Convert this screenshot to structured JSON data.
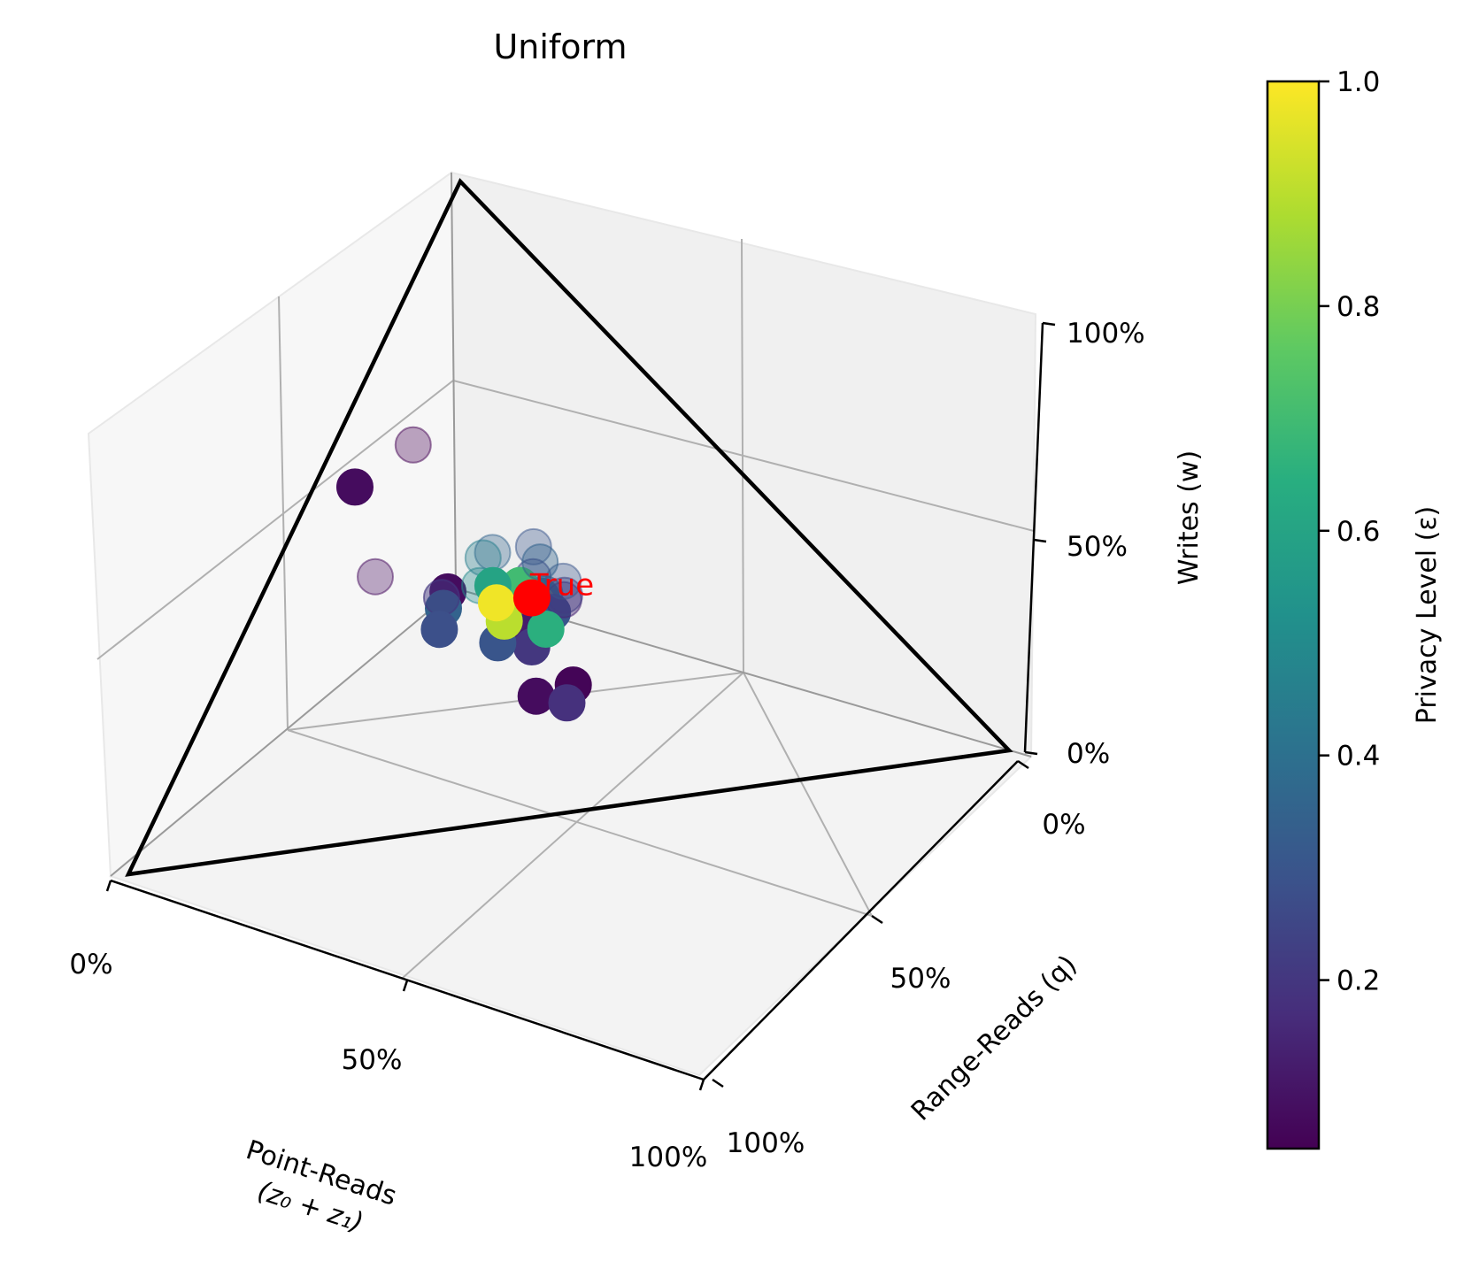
{
  "chart_data": {
    "type": "scatter3d",
    "title": "Uniform",
    "axes": {
      "x": {
        "label_line1": "Point-Reads",
        "label_line2": "(z₀ + z₁)",
        "ticks": [
          "0%",
          "50%",
          "100%"
        ],
        "range": [
          0,
          100
        ]
      },
      "y": {
        "label": "Range-Reads (q)",
        "ticks": [
          "0%",
          "50%",
          "100%"
        ],
        "range": [
          0,
          100
        ]
      },
      "z": {
        "label": "Writes (w)",
        "ticks": [
          "0%",
          "50%",
          "100%"
        ],
        "range": [
          0,
          100
        ]
      }
    },
    "simplex": true,
    "grid": true,
    "true_point": {
      "label": "True",
      "x": 33,
      "y": 33,
      "z": 34,
      "color": "#ff0000"
    },
    "colorbar": {
      "label": "Privacy Level (ε)",
      "range": [
        0.05,
        1.0
      ],
      "ticks": [
        "0.2",
        "0.4",
        "0.6",
        "0.8",
        "1.0"
      ],
      "tick_values": [
        0.2,
        0.4,
        0.6,
        0.8,
        1.0
      ],
      "colormap": "viridis"
    },
    "points": [
      {
        "x": 40,
        "y": 5,
        "z": 55,
        "eps": 0.08,
        "alpha": 1.0
      },
      {
        "x": 55,
        "y": 15,
        "z": 48,
        "eps": 0.08,
        "alpha": 0.35
      },
      {
        "x": 25,
        "y": 8,
        "z": 50,
        "eps": 0.05,
        "alpha": 0.35
      },
      {
        "x": 40,
        "y": 22,
        "z": 36,
        "eps": 0.08,
        "alpha": 1.0
      },
      {
        "x": 45,
        "y": 24,
        "z": 36,
        "eps": 0.35,
        "alpha": 1.0
      },
      {
        "x": 42,
        "y": 22,
        "z": 36,
        "eps": 0.2,
        "alpha": 0.5
      },
      {
        "x": 28,
        "y": 22,
        "z": 36,
        "eps": 0.35,
        "alpha": 0.35
      },
      {
        "x": 24,
        "y": 26,
        "z": 36,
        "eps": 0.3,
        "alpha": 0.35
      },
      {
        "x": 35,
        "y": 35,
        "z": 30,
        "eps": 0.2,
        "alpha": 1.0
      },
      {
        "x": 30,
        "y": 32,
        "z": 32,
        "eps": 0.5,
        "alpha": 1.0
      },
      {
        "x": 32,
        "y": 32,
        "z": 33,
        "eps": 0.6,
        "alpha": 1.0
      },
      {
        "x": 34,
        "y": 33,
        "z": 33,
        "eps": 0.75,
        "alpha": 1.0
      },
      {
        "x": 33,
        "y": 34,
        "z": 33,
        "eps": 0.95,
        "alpha": 1.0
      },
      {
        "x": 36,
        "y": 32,
        "z": 32,
        "eps": 0.88,
        "alpha": 1.0
      },
      {
        "x": 31,
        "y": 34,
        "z": 34,
        "eps": 0.4,
        "alpha": 0.5
      },
      {
        "x": 29,
        "y": 30,
        "z": 35,
        "eps": 0.25,
        "alpha": 0.4
      },
      {
        "x": 34,
        "y": 30,
        "z": 33,
        "eps": 0.55,
        "alpha": 1.0
      },
      {
        "x": 37,
        "y": 34,
        "z": 31,
        "eps": 0.45,
        "alpha": 1.0
      },
      {
        "x": 32,
        "y": 36,
        "z": 31,
        "eps": 0.3,
        "alpha": 1.0
      },
      {
        "x": 38,
        "y": 36,
        "z": 30,
        "eps": 0.12,
        "alpha": 1.0
      },
      {
        "x": 40,
        "y": 38,
        "z": 28,
        "eps": 0.2,
        "alpha": 1.0
      },
      {
        "x": 30,
        "y": 37,
        "z": 33,
        "eps": 0.15,
        "alpha": 0.4
      },
      {
        "x": 28,
        "y": 35,
        "z": 32,
        "eps": 0.22,
        "alpha": 0.4
      },
      {
        "x": 26,
        "y": 33,
        "z": 33,
        "eps": 0.3,
        "alpha": 0.35
      },
      {
        "x": 44,
        "y": 34,
        "z": 30,
        "eps": 0.3,
        "alpha": 1.0
      },
      {
        "x": 36,
        "y": 38,
        "z": 30,
        "eps": 0.65,
        "alpha": 1.0
      },
      {
        "x": 38,
        "y": 31,
        "z": 31,
        "eps": 0.9,
        "alpha": 1.0
      },
      {
        "x": 31,
        "y": 29,
        "z": 34,
        "eps": 0.7,
        "alpha": 1.0
      },
      {
        "x": 48,
        "y": 25,
        "z": 33,
        "eps": 0.28,
        "alpha": 1.0
      },
      {
        "x": 45,
        "y": 42,
        "z": 20,
        "eps": 0.08,
        "alpha": 1.0
      },
      {
        "x": 38,
        "y": 44,
        "z": 20,
        "eps": 0.06,
        "alpha": 1.0
      },
      {
        "x": 42,
        "y": 46,
        "z": 18,
        "eps": 0.18,
        "alpha": 1.0
      },
      {
        "x": 40,
        "y": 28,
        "z": 40,
        "eps": 0.5,
        "alpha": 0.35
      },
      {
        "x": 33,
        "y": 24,
        "z": 40,
        "eps": 0.45,
        "alpha": 0.35
      },
      {
        "x": 27,
        "y": 30,
        "z": 37,
        "eps": 0.35,
        "alpha": 0.4
      },
      {
        "x": 35,
        "y": 27,
        "z": 36,
        "eps": 0.6,
        "alpha": 1.0
      },
      {
        "x": 37,
        "y": 29,
        "z": 34,
        "eps": 0.98,
        "alpha": 1.0
      }
    ]
  }
}
